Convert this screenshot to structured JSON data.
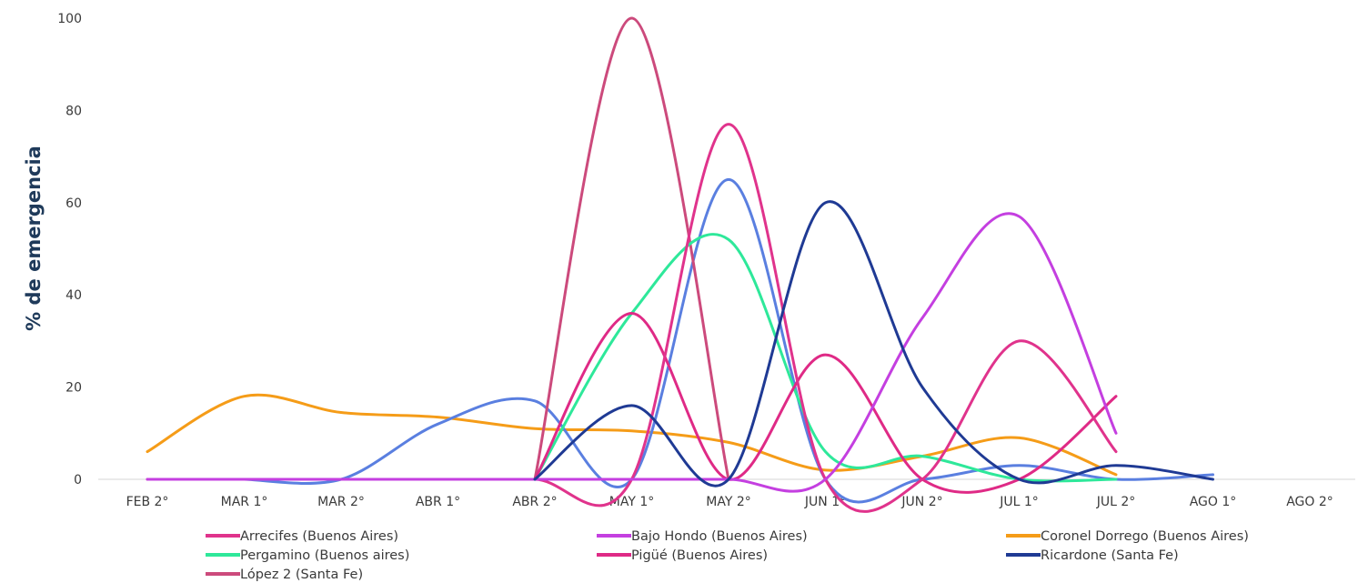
{
  "chart_data": {
    "type": "line",
    "ylabel": "% de emergencia",
    "xlabel": "",
    "ylim": [
      0,
      100
    ],
    "yticks": [
      0,
      20,
      40,
      60,
      80,
      100
    ],
    "categories": [
      "FEB 2°",
      "MAR 1°",
      "MAR 2°",
      "ABR 1°",
      "ABR  2°",
      "MAY 1°",
      "MAY 2°",
      "JUN 1°",
      "JUN 2°",
      "JUL 1°",
      "JUL 2°",
      "AGO 1°",
      "AGO 2°"
    ],
    "grid": false,
    "legend_position": "bottom",
    "series": [
      {
        "name": "Arrecifes (Buenos Aires)",
        "color": "#e0338c",
        "values": [
          0,
          0,
          0,
          0,
          0,
          0,
          77,
          0,
          0,
          30,
          6,
          null,
          null
        ]
      },
      {
        "name": "Bajo Hondo (Buenos Aires)",
        "color": "#c43fe0",
        "values": [
          0,
          0,
          0,
          0,
          0,
          0,
          0,
          0,
          35,
          57,
          10,
          null,
          null
        ]
      },
      {
        "name": "Coronel Dorrego (Buenos Aires)",
        "color": "#f59c18",
        "values": [
          6,
          18,
          14.5,
          13.5,
          11,
          10.5,
          8,
          2,
          5,
          9,
          1,
          null,
          null
        ]
      },
      {
        "name": "Pergamino (Buenos aires)",
        "color": "#2ee89a",
        "values": [
          null,
          null,
          null,
          null,
          0,
          36,
          52,
          6,
          5,
          0,
          0,
          null,
          null
        ]
      },
      {
        "name": "Pigüé (Buenos Aires)",
        "color": "#df2a86",
        "values": [
          null,
          null,
          null,
          null,
          0,
          36,
          0,
          27,
          0,
          0,
          18,
          null,
          null
        ]
      },
      {
        "name": "Ricardone (Santa Fe)",
        "color": "#1f3a94",
        "values": [
          null,
          null,
          null,
          null,
          0,
          16,
          0,
          60,
          20,
          0,
          3,
          0,
          null
        ]
      },
      {
        "name": "López 2 (Santa Fe)",
        "color": "#cc4a7c",
        "values": [
          null,
          null,
          null,
          null,
          0,
          100,
          0,
          null,
          null,
          null,
          null,
          null,
          null
        ]
      },
      {
        "name": "",
        "color": "#5a7fe0",
        "values": [
          null,
          0,
          0,
          12,
          17,
          0,
          65,
          0,
          0,
          3,
          0,
          1,
          null
        ]
      }
    ]
  }
}
